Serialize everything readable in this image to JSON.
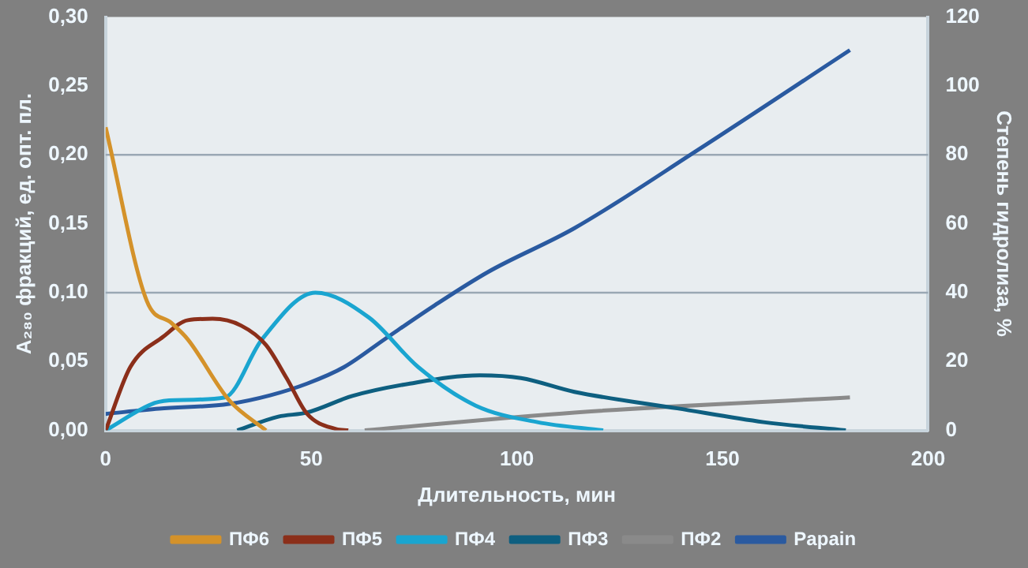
{
  "chart_data": {
    "type": "line",
    "xlabel": "Длительность, мин",
    "ylabel": "A₂₈₀ фракций, ед. опт. пл.",
    "y2label": "Степень гидролиза, %",
    "xlim": [
      0,
      200
    ],
    "xticks": [
      0,
      50,
      100,
      150,
      200
    ],
    "ylim": [
      0,
      0.3
    ],
    "yticks": [
      {
        "value": 0,
        "label": "0,00"
      },
      {
        "value": 0.05,
        "label": "0,05"
      },
      {
        "value": 0.1,
        "label": "0,10"
      },
      {
        "value": 0.15,
        "label": "0,15"
      },
      {
        "value": 0.2,
        "label": "0,20"
      },
      {
        "value": 0.25,
        "label": "0,25"
      },
      {
        "value": 0.3,
        "label": "0,30"
      }
    ],
    "y2lim": [
      0,
      120
    ],
    "y2ticks": [
      0,
      20,
      40,
      60,
      80,
      100,
      120
    ],
    "grid": false,
    "legend": "bottom",
    "marker": "none",
    "line_style": "solid",
    "ref_lines": [
      {
        "axis": "y",
        "value": 0.1,
        "color": "#9aa8b4"
      },
      {
        "axis": "y",
        "value": 0.2,
        "color": "#9aa8b4"
      }
    ],
    "series": [
      {
        "name": "ПФ6",
        "color": "#d4922a",
        "x": [
          0,
          10,
          16,
          20,
          30,
          39
        ],
        "values": [
          0.22,
          0.094,
          0.078,
          0.066,
          0.022,
          0
        ]
      },
      {
        "name": "ПФ5",
        "color": "#8b2f1a",
        "x": [
          0,
          6,
          14,
          20,
          26,
          33,
          39,
          44,
          49,
          56,
          59
        ],
        "values": [
          0,
          0.046,
          0.068,
          0.08,
          0.081,
          0.076,
          0.062,
          0.038,
          0.012,
          0.001,
          0
        ]
      },
      {
        "name": "ПФ4",
        "color": "#1aa5d0",
        "x": [
          0,
          12,
          17,
          29,
          38,
          51,
          64,
          76,
          90,
          105,
          121
        ],
        "values": [
          0,
          0.02,
          0.022,
          0.024,
          0.066,
          0.1,
          0.082,
          0.046,
          0.018,
          0.006,
          0
        ]
      },
      {
        "name": "ПФ3",
        "color": "#0e5f80",
        "x": [
          32,
          42,
          49,
          60,
          74,
          91,
          101,
          114,
          139,
          160,
          180
        ],
        "values": [
          0,
          0.01,
          0.013,
          0.025,
          0.034,
          0.04,
          0.038,
          0.028,
          0.016,
          0.006,
          0
        ]
      },
      {
        "name": "ПФ2",
        "color": "#8a8a8a",
        "x": [
          63,
          114,
          181
        ],
        "values": [
          0,
          0.013,
          0.024
        ]
      },
      {
        "name": "Papain",
        "color": "#2a5aa0",
        "axis": "y2",
        "x": [
          0,
          13,
          30,
          40,
          49,
          58,
          68,
          80,
          93,
          114,
          144,
          181
        ],
        "values": [
          4.8,
          6.3,
          7.7,
          10.2,
          13.6,
          18.4,
          26.6,
          36.3,
          46,
          58.7,
          81.4,
          110.4
        ]
      }
    ]
  }
}
